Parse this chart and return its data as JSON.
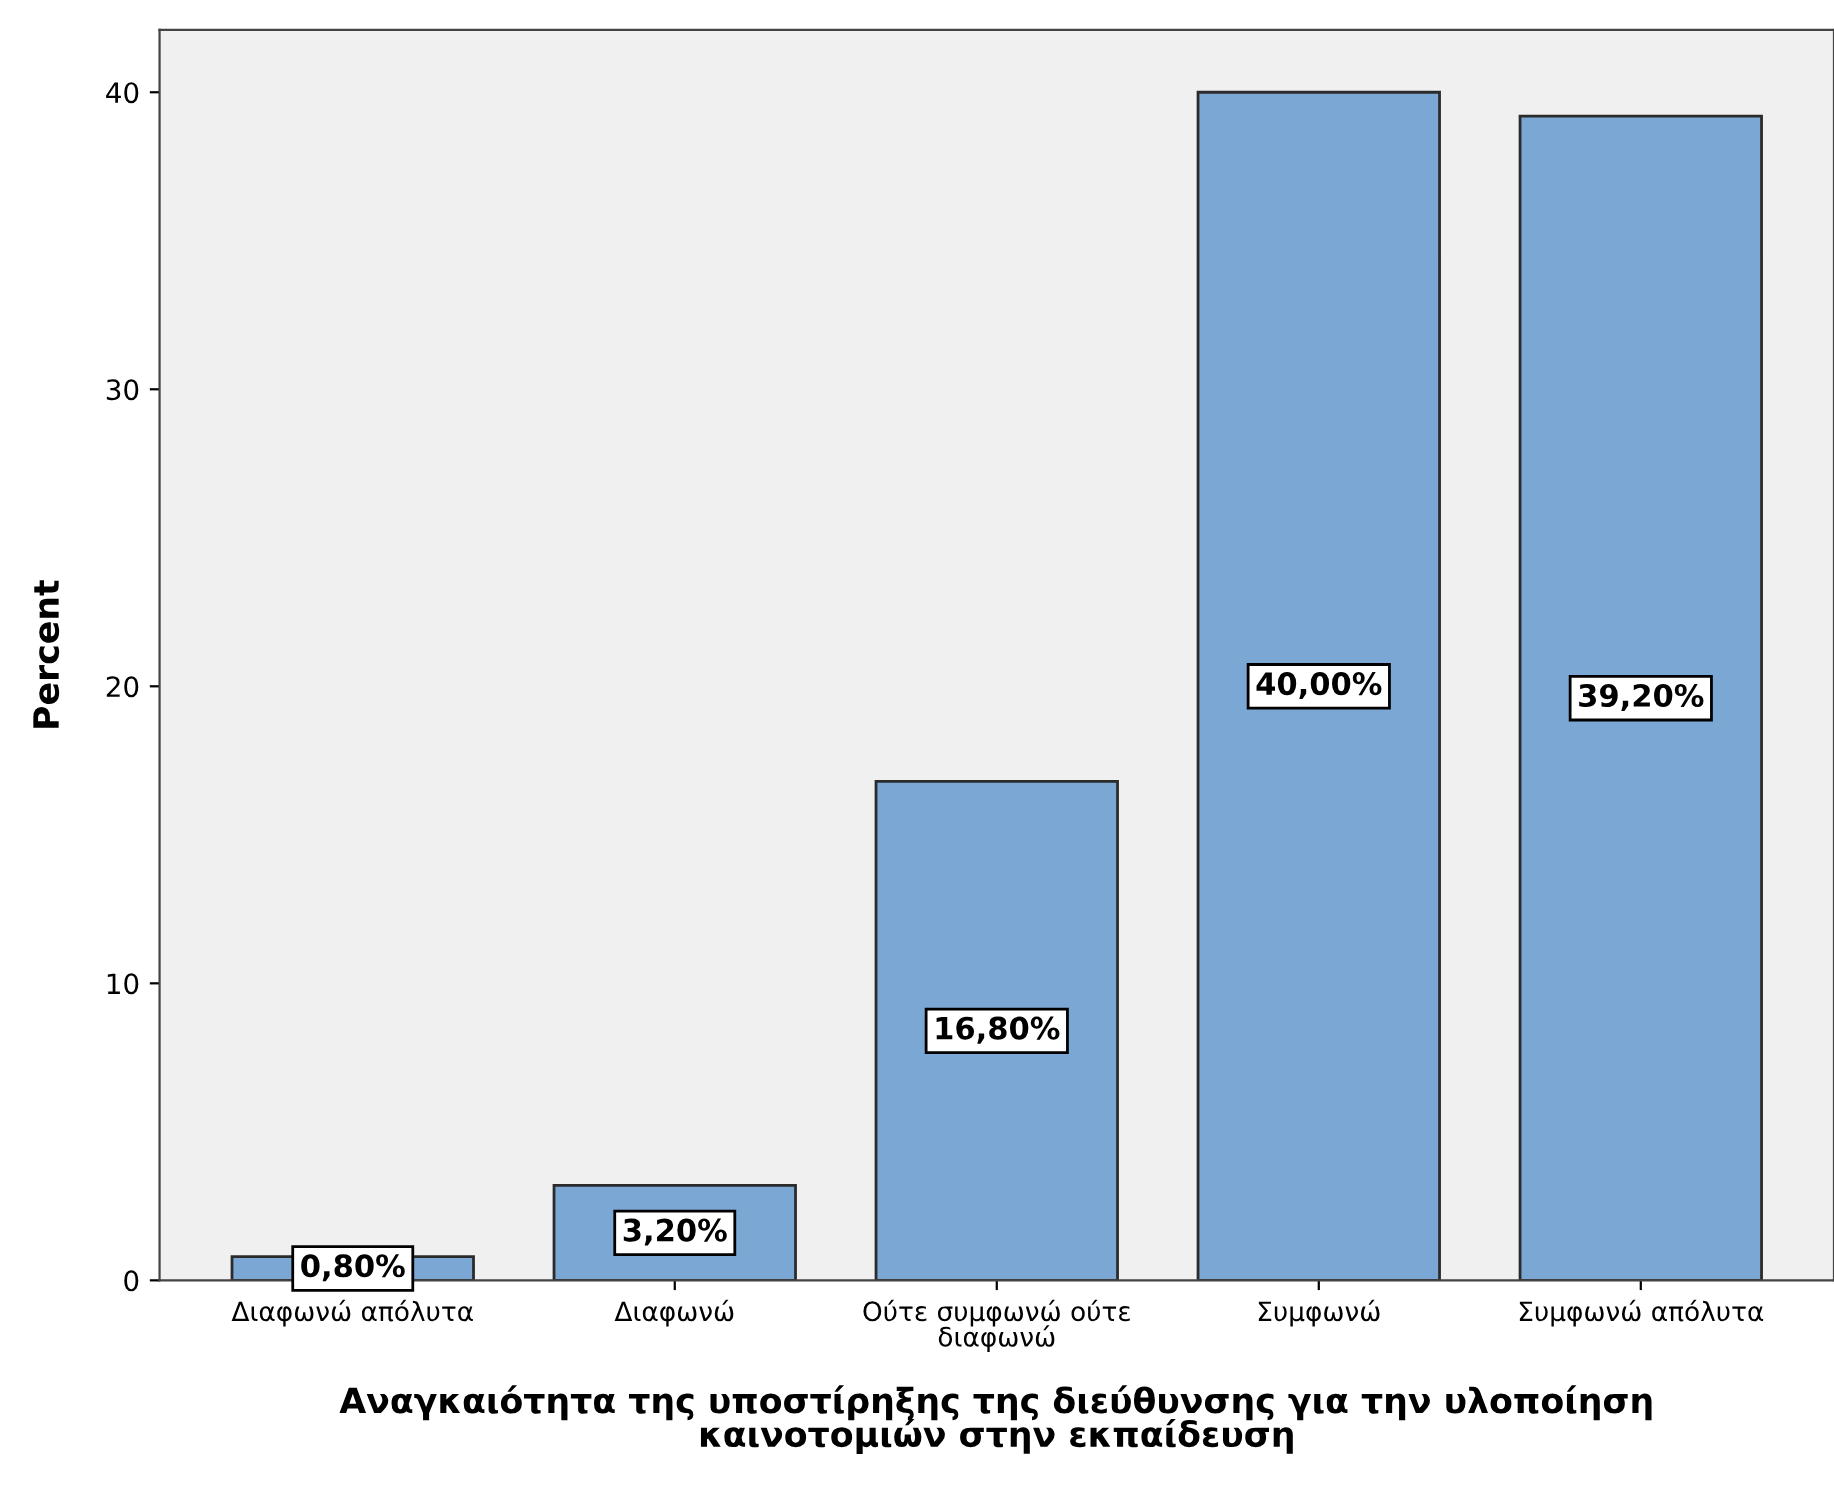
{
  "chart_data": {
    "type": "bar",
    "xlabel": "Αναγκαιότητα της υποστίρηξης της διεύθυνσης για την υλοποίηση\nκαινοτομιών στην εκπαίδευση",
    "ylabel": "Percent",
    "categories": [
      "Διαφωνώ απόλυτα",
      "Διαφωνώ",
      "Ούτε συμφωνώ ούτε\nδιαφωνώ",
      "Συμφωνώ",
      "Συμφωνώ απόλυτα"
    ],
    "values": [
      0.8,
      3.2,
      16.8,
      40.0,
      39.2
    ],
    "value_labels": [
      "0,80%",
      "3,20%",
      "16,80%",
      "40,00%",
      "39,20%"
    ],
    "color": "#7ba7d4",
    "ylim": [
      0,
      42.1
    ],
    "yticks": [
      0,
      10,
      20,
      30,
      40
    ],
    "grid": false,
    "legend": false
  }
}
